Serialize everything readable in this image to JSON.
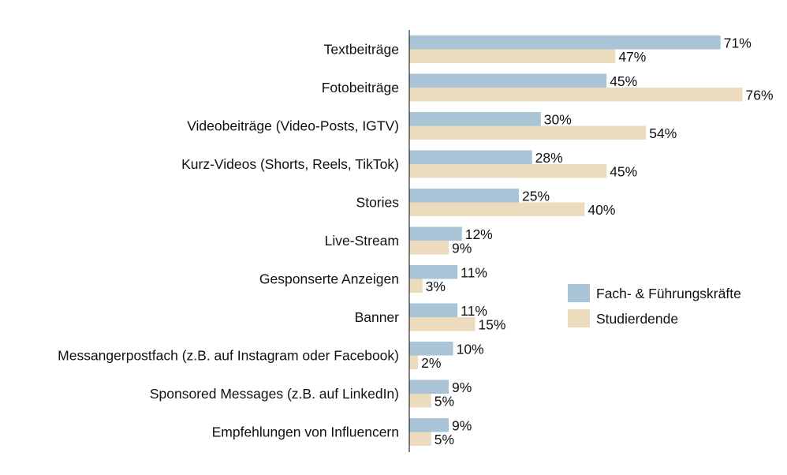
{
  "chart_data": {
    "type": "bar",
    "orientation": "horizontal",
    "categories": [
      "Textbeiträge",
      "Fotobeiträge",
      "Videobeiträge (Video-Posts, IGTV)",
      "Kurz-Videos (Shorts, Reels, TikTok)",
      "Stories",
      "Live-Stream",
      "Gesponserte Anzeigen",
      "Banner",
      "Messangerpostfach (z.B. auf Instagram oder Facebook)",
      "Sponsored Messages (z.B. auf LinkedIn)",
      "Empfehlungen von Influencern"
    ],
    "series": [
      {
        "name": "Fach- & Führungskräfte",
        "color": "#a9c3d7",
        "values": [
          71,
          45,
          30,
          28,
          25,
          12,
          11,
          11,
          10,
          9,
          9
        ]
      },
      {
        "name": "Studierdende",
        "color": "#eddbbd",
        "values": [
          47,
          76,
          54,
          45,
          40,
          9,
          3,
          15,
          2,
          5,
          5
        ]
      }
    ],
    "value_suffix": "%",
    "xlim": [
      0,
      80
    ],
    "grid": false,
    "legend_position": "right",
    "title": "",
    "xlabel": "",
    "ylabel": ""
  }
}
